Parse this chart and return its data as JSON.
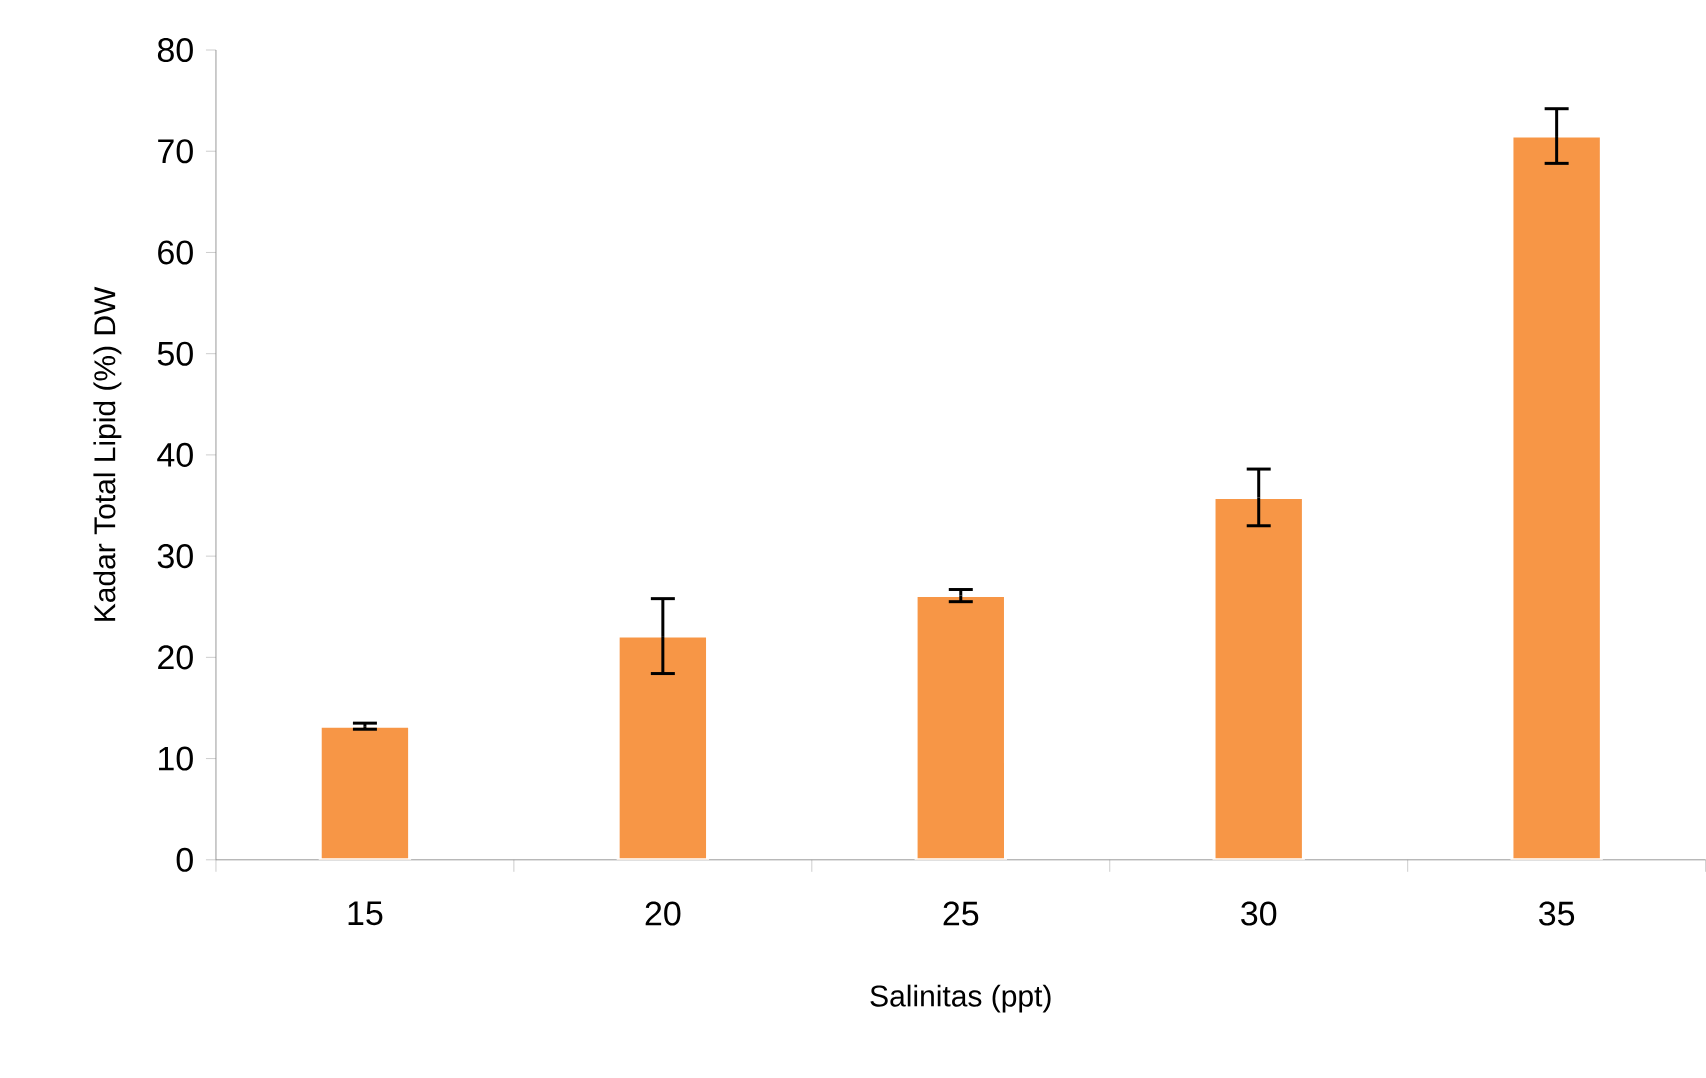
{
  "chart_data": {
    "type": "bar",
    "xlabel": "Salinitas (ppt)",
    "ylabel": "Kadar Total Lipid (%) DW",
    "categories": [
      "15",
      "20",
      "25",
      "30",
      "35"
    ],
    "values": [
      13.2,
      22.1,
      26.1,
      35.8,
      71.5
    ],
    "errors": [
      0.3,
      3.7,
      0.6,
      2.8,
      2.7
    ],
    "color": "#f79646",
    "ylim": [
      0,
      80
    ],
    "yticks": [
      0,
      10,
      20,
      30,
      40,
      50,
      60,
      70,
      80
    ],
    "grid": false
  }
}
